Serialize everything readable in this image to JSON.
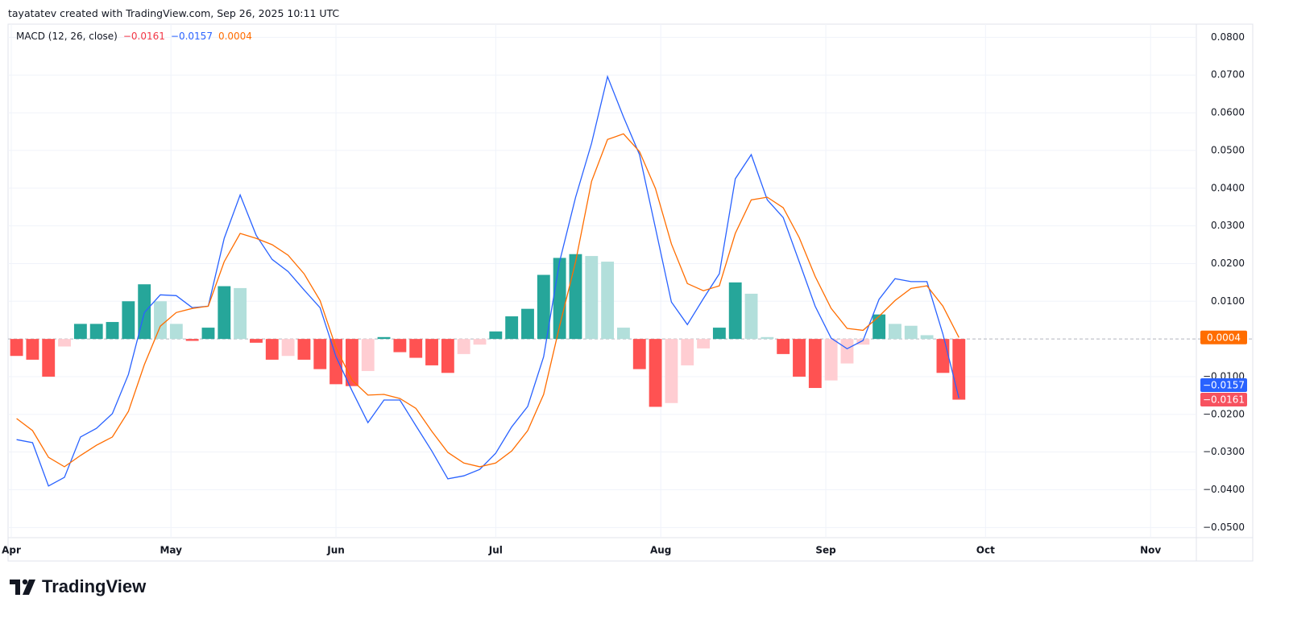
{
  "header": {
    "attribution": "tayatatev created with TradingView.com, Sep 26, 2025 10:11 UTC"
  },
  "footer": {
    "brand": "TradingView"
  },
  "chart_data": {
    "type": "macd",
    "title": "MACD (12, 26, close)",
    "legend_values": [
      {
        "value": -0.0161,
        "label": "−0.0161",
        "color": "#f23645"
      },
      {
        "value": -0.0157,
        "label": "−0.0157",
        "color": "#2962ff"
      },
      {
        "value": 0.0004,
        "label": "0.0004",
        "color": "#ff6d00"
      }
    ],
    "x": [
      1,
      4,
      7,
      10,
      13,
      16,
      19,
      22,
      25,
      28,
      31,
      34,
      37,
      40,
      43,
      46,
      49,
      52,
      55,
      58,
      61,
      64,
      67,
      70,
      73,
      76,
      79,
      82,
      85,
      88,
      91,
      94,
      97,
      100,
      103,
      106,
      109,
      112,
      115,
      118,
      121,
      124,
      127,
      130,
      133,
      136,
      139,
      142,
      145,
      148,
      151,
      154,
      157,
      160,
      163,
      166,
      169,
      172,
      175,
      178
    ],
    "xlim": [
      -0.6,
      222.6
    ],
    "xticks": [
      {
        "value": 0,
        "label": "Apr"
      },
      {
        "value": 30,
        "label": "May"
      },
      {
        "value": 61,
        "label": "Jun"
      },
      {
        "value": 91,
        "label": "Jul"
      },
      {
        "value": 122,
        "label": "Aug"
      },
      {
        "value": 153,
        "label": "Sep"
      },
      {
        "value": 183,
        "label": "Oct"
      },
      {
        "value": 214,
        "label": "Nov"
      }
    ],
    "ylim": [
      -0.0527,
      0.0835
    ],
    "yticks": [
      {
        "value": 0.08,
        "label": "0.0800"
      },
      {
        "value": 0.07,
        "label": "0.0700"
      },
      {
        "value": 0.06,
        "label": "0.0600"
      },
      {
        "value": 0.05,
        "label": "0.0500"
      },
      {
        "value": 0.04,
        "label": "0.0400"
      },
      {
        "value": 0.03,
        "label": "0.0300"
      },
      {
        "value": 0.02,
        "label": "0.0200"
      },
      {
        "value": 0.01,
        "label": "0.0100"
      },
      {
        "value": -0.01,
        "label": "−0.0100"
      },
      {
        "value": -0.02,
        "label": "−0.0200"
      },
      {
        "value": -0.03,
        "label": "−0.0300"
      },
      {
        "value": -0.04,
        "label": "−0.0400"
      },
      {
        "value": -0.05,
        "label": "−0.0500"
      }
    ],
    "grid": true,
    "zero_line": 0,
    "series": [
      {
        "kind": "histogram",
        "colors": {
          "grow_above": "#26a69a",
          "fall_above": "#b2dfdb",
          "grow_below": "#ffcdd2",
          "fall_below": "#ff5252"
        },
        "values": [
          -0.0045,
          -0.0055,
          -0.01,
          -0.002,
          0.004,
          0.004,
          0.0045,
          0.01,
          0.0145,
          0.01,
          0.004,
          -0.0005,
          0.003,
          0.014,
          0.0135,
          -0.001,
          -0.0055,
          -0.0045,
          -0.0055,
          -0.008,
          -0.012,
          -0.0125,
          -0.0085,
          0.0005,
          -0.0035,
          -0.005,
          -0.007,
          -0.009,
          -0.004,
          -0.0015,
          0.002,
          0.006,
          0.008,
          0.017,
          0.0215,
          0.0225,
          0.022,
          0.0205,
          0.003,
          -0.008,
          -0.018,
          -0.017,
          -0.007,
          -0.0025,
          0.003,
          0.015,
          0.012,
          0.0005,
          -0.004,
          -0.01,
          -0.013,
          -0.011,
          -0.0065,
          -0.0015,
          0.0065,
          0.004,
          0.0035,
          0.001,
          -0.009,
          -0.0161
        ]
      },
      {
        "kind": "line",
        "color": "#2962ff",
        "values": [
          -0.0267,
          -0.0275,
          -0.039,
          -0.0367,
          -0.026,
          -0.0237,
          -0.0198,
          -0.0094,
          0.007,
          0.0117,
          0.0115,
          0.0083,
          0.0087,
          0.0267,
          0.0382,
          0.0275,
          0.0211,
          0.0179,
          0.013,
          0.0083,
          -0.0047,
          -0.0137,
          -0.0222,
          -0.0162,
          -0.0162,
          -0.023,
          -0.0297,
          -0.0371,
          -0.0363,
          -0.0346,
          -0.0303,
          -0.0233,
          -0.0179,
          -0.0047,
          0.0205,
          0.0376,
          0.0519,
          0.0696,
          0.0589,
          0.0489,
          0.0294,
          0.0098,
          0.0038,
          0.0107,
          0.0173,
          0.0425,
          0.0489,
          0.0369,
          0.0322,
          0.0205,
          0.0087,
          0.0002,
          -0.0026,
          -0.0004,
          0.0105,
          0.016,
          0.0152,
          0.0152,
          0.0013,
          -0.0157
        ]
      },
      {
        "kind": "line",
        "color": "#ff6d00",
        "values": [
          -0.0211,
          -0.0243,
          -0.0314,
          -0.0339,
          -0.0309,
          -0.0282,
          -0.026,
          -0.0192,
          -0.0068,
          0.0034,
          0.007,
          0.0081,
          0.0087,
          0.0205,
          0.028,
          0.0267,
          0.025,
          0.0222,
          0.0173,
          0.0102,
          -0.0023,
          -0.0109,
          -0.0149,
          -0.0147,
          -0.0158,
          -0.0184,
          -0.0245,
          -0.0301,
          -0.0329,
          -0.0339,
          -0.0329,
          -0.0297,
          -0.0243,
          -0.0147,
          0.0034,
          0.0205,
          0.0418,
          0.0529,
          0.0544,
          0.0497,
          0.0399,
          0.0252,
          0.0147,
          0.0128,
          0.0141,
          0.028,
          0.0369,
          0.0376,
          0.0348,
          0.0269,
          0.0166,
          0.0081,
          0.0028,
          0.0023,
          0.006,
          0.0102,
          0.0134,
          0.0141,
          0.0087,
          0.0004
        ]
      }
    ],
    "last_value_tags": [
      {
        "value": 0.0004,
        "label": "0.0004",
        "color": "#ff6d00"
      },
      {
        "value": -0.0157,
        "label": "−0.0157",
        "color": "#2962ff"
      },
      {
        "value": -0.0161,
        "label": "−0.0161",
        "color": "#f7525f"
      }
    ]
  }
}
